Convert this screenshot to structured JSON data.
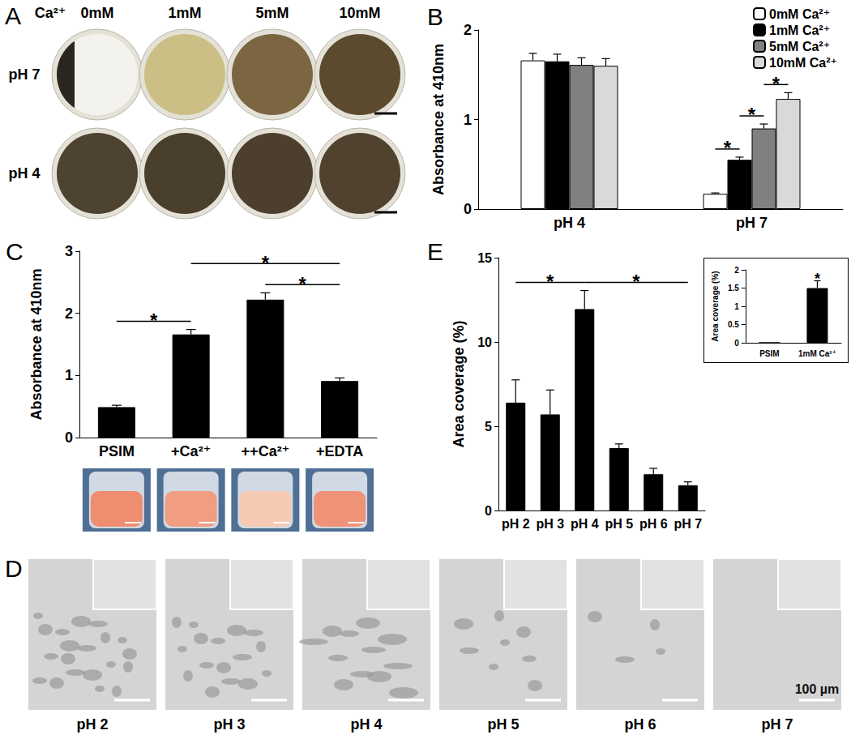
{
  "chart_data": [
    {
      "type": "bar",
      "title": "B",
      "ylabel": "Absorbance at 410nm",
      "categories": [
        "pH 4",
        "pH 7"
      ],
      "series": [
        {
          "name": "0mM Ca²⁺",
          "color": "#ffffff",
          "values": [
            1.66,
            0.17
          ],
          "errors": [
            0.08,
            0.01
          ]
        },
        {
          "name": "1mM Ca²⁺",
          "color": "#000000",
          "values": [
            1.65,
            0.55
          ],
          "errors": [
            0.08,
            0.03
          ]
        },
        {
          "name": "5mM Ca²⁺",
          "color": "#808080",
          "values": [
            1.61,
            0.9
          ],
          "errors": [
            0.08,
            0.05
          ]
        },
        {
          "name": "10mM Ca²⁺",
          "color": "#d9d9d9",
          "values": [
            1.6,
            1.23
          ],
          "errors": [
            0.08,
            0.07
          ]
        }
      ],
      "ylim": [
        0,
        2
      ],
      "yticks": [
        0,
        1,
        2
      ],
      "grid": false,
      "legend": "top right",
      "annotations": [
        {
          "text": "*",
          "category": "pH 7",
          "from": "0mM Ca²⁺",
          "to": "1mM Ca²⁺"
        },
        {
          "text": "*",
          "category": "pH 7",
          "from": "1mM Ca²⁺",
          "to": "5mM Ca²⁺"
        },
        {
          "text": "*",
          "category": "pH 7",
          "from": "5mM Ca²⁺",
          "to": "10mM Ca²⁺"
        }
      ]
    },
    {
      "type": "bar",
      "title": "C",
      "ylabel": "Absorbance at 410nm",
      "categories": [
        "PSIM",
        "+Ca²⁺",
        "++Ca²⁺",
        "+EDTA"
      ],
      "values": [
        0.49,
        1.66,
        2.22,
        0.91
      ],
      "errors": [
        0.03,
        0.08,
        0.11,
        0.05
      ],
      "color": "#000000",
      "ylim": [
        0,
        3
      ],
      "yticks": [
        0,
        1,
        2,
        3
      ],
      "grid": false,
      "annotations": [
        {
          "text": "*",
          "from": "PSIM",
          "to": "+Ca²⁺"
        },
        {
          "text": "*",
          "from": "+Ca²⁺",
          "to": "+EDTA"
        },
        {
          "text": "*",
          "from": "++Ca²⁺",
          "to": "+EDTA"
        }
      ]
    },
    {
      "type": "bar",
      "title": "E",
      "ylabel": "Area coverage (%)",
      "categories": [
        "pH 2",
        "pH 3",
        "pH 4",
        "pH 5",
        "pH 6",
        "pH 7"
      ],
      "values": [
        6.4,
        5.7,
        11.95,
        3.7,
        2.15,
        1.5
      ],
      "errors": [
        1.35,
        1.45,
        1.1,
        0.25,
        0.35,
        0.2
      ],
      "color": "#000000",
      "ylim": [
        0,
        15
      ],
      "yticks": [
        0,
        5,
        10,
        15
      ],
      "grid": false,
      "annotations": [
        {
          "text": "*",
          "from": "pH 2",
          "to": "pH 4"
        },
        {
          "text": "*",
          "from": "pH 4",
          "to": "pH 7"
        }
      ]
    },
    {
      "type": "bar",
      "ylabel": "Area coverage (%)",
      "categories": [
        "PSIM",
        "1mM Ca²⁺"
      ],
      "values": [
        0,
        1.5
      ],
      "errors": [
        0,
        0.2
      ],
      "color": "#000000",
      "ylim": [
        0,
        2
      ],
      "yticks": [
        0,
        0.5,
        1,
        1.5,
        2
      ],
      "grid": false,
      "annotations": [
        {
          "text": "*",
          "category": "1mM Ca²⁺"
        }
      ]
    }
  ],
  "image_panels": {
    "A": {
      "title": "A",
      "header": "Ca²⁺",
      "columns": [
        "0mM",
        "1mM",
        "5mM",
        "10mM"
      ],
      "rows": [
        "pH 7",
        "pH 4"
      ]
    },
    "D": {
      "title": "D",
      "labels": [
        "pH 2",
        "pH 3",
        "pH 4",
        "pH 5",
        "pH 6",
        "pH 7"
      ],
      "scale_bar": "100 µm"
    }
  }
}
